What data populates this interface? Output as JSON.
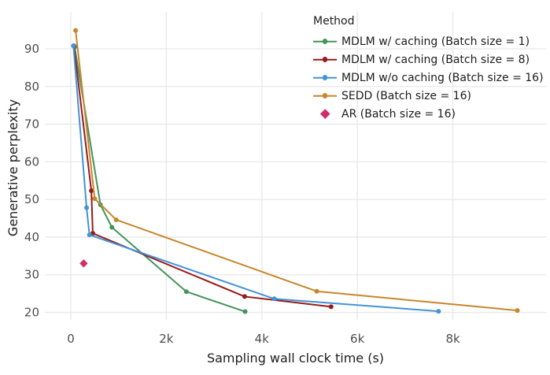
{
  "chart_data": {
    "type": "line",
    "title": "",
    "legend_title": "Method",
    "xlabel": "Sampling wall clock time (s)",
    "ylabel": "Generative perplexity",
    "legend_position": "top-right inside plot, no border",
    "grid": "major gridlines only, light gray on white, no axis spines",
    "xlim": [
      -540,
      9920
    ],
    "ylim": [
      18,
      99
    ],
    "x_ticks": [
      {
        "value": 0,
        "label": "0"
      },
      {
        "value": 2000,
        "label": "2k"
      },
      {
        "value": 4000,
        "label": "4k"
      },
      {
        "value": 6000,
        "label": "6k"
      },
      {
        "value": 8000,
        "label": "8k"
      }
    ],
    "y_ticks": [
      {
        "value": 20,
        "label": "20"
      },
      {
        "value": 30,
        "label": "30"
      },
      {
        "value": 40,
        "label": "40"
      },
      {
        "value": 50,
        "label": "50"
      },
      {
        "value": 60,
        "label": "60"
      },
      {
        "value": 70,
        "label": "70"
      },
      {
        "value": 80,
        "label": "80"
      },
      {
        "value": 90,
        "label": "90"
      }
    ],
    "series": [
      {
        "name": "MDLM w/ caching (Batch size = 1)",
        "color": "#44935a",
        "marker": "circle",
        "points": [
          [
            80,
            90.5
          ],
          [
            620,
            48.6
          ],
          [
            860,
            42.6
          ],
          [
            2420,
            25.5
          ],
          [
            3650,
            20.2
          ]
        ]
      },
      {
        "name": "MDLM w/ caching (Batch size = 8)",
        "color": "#961b1b",
        "marker": "circle",
        "points": [
          [
            65,
            90.8
          ],
          [
            430,
            52.3
          ],
          [
            460,
            41.0
          ],
          [
            3640,
            24.2
          ],
          [
            5450,
            21.5
          ]
        ]
      },
      {
        "name": "MDLM w/o caching (Batch size = 16)",
        "color": "#4293d7",
        "marker": "circle",
        "points": [
          [
            55,
            90.8
          ],
          [
            330,
            47.8
          ],
          [
            390,
            40.6
          ],
          [
            4260,
            23.6
          ],
          [
            7700,
            20.3
          ]
        ]
      },
      {
        "name": "SEDD (Batch size = 16)",
        "color": "#c8862c",
        "marker": "circle",
        "points": [
          [
            100,
            94.9
          ],
          [
            500,
            50.2
          ],
          [
            950,
            44.6
          ],
          [
            5150,
            25.6
          ],
          [
            9350,
            20.5
          ]
        ]
      },
      {
        "name": "AR (Batch size = 16)",
        "color": "#d12d68",
        "marker": "diamond",
        "points": [
          [
            270,
            33.0
          ]
        ]
      }
    ],
    "colors": {
      "grid": "#e8e8e8",
      "tick_text": "#4d4d4d",
      "axis_title_text": "#1c1c1c",
      "background": "#ffffff"
    }
  }
}
